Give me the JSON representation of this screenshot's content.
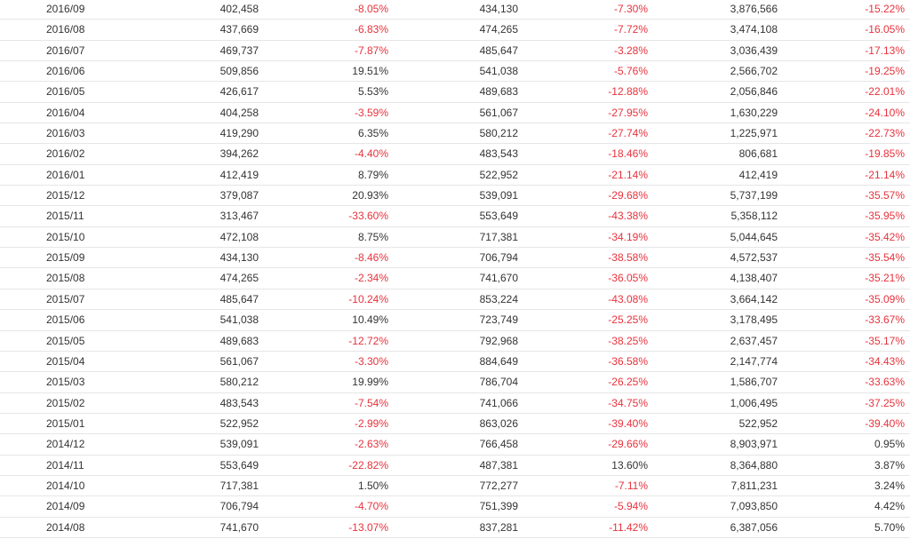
{
  "table": {
    "rows": [
      [
        "2016/09",
        "402,458",
        "-8.05%",
        "434,130",
        "-7.30%",
        "3,876,566",
        "-15.22%"
      ],
      [
        "2016/08",
        "437,669",
        "-6.83%",
        "474,265",
        "-7.72%",
        "3,474,108",
        "-16.05%"
      ],
      [
        "2016/07",
        "469,737",
        "-7.87%",
        "485,647",
        "-3.28%",
        "3,036,439",
        "-17.13%"
      ],
      [
        "2016/06",
        "509,856",
        "19.51%",
        "541,038",
        "-5.76%",
        "2,566,702",
        "-19.25%"
      ],
      [
        "2016/05",
        "426,617",
        "5.53%",
        "489,683",
        "-12.88%",
        "2,056,846",
        "-22.01%"
      ],
      [
        "2016/04",
        "404,258",
        "-3.59%",
        "561,067",
        "-27.95%",
        "1,630,229",
        "-24.10%"
      ],
      [
        "2016/03",
        "419,290",
        "6.35%",
        "580,212",
        "-27.74%",
        "1,225,971",
        "-22.73%"
      ],
      [
        "2016/02",
        "394,262",
        "-4.40%",
        "483,543",
        "-18.46%",
        "806,681",
        "-19.85%"
      ],
      [
        "2016/01",
        "412,419",
        "8.79%",
        "522,952",
        "-21.14%",
        "412,419",
        "-21.14%"
      ],
      [
        "2015/12",
        "379,087",
        "20.93%",
        "539,091",
        "-29.68%",
        "5,737,199",
        "-35.57%"
      ],
      [
        "2015/11",
        "313,467",
        "-33.60%",
        "553,649",
        "-43.38%",
        "5,358,112",
        "-35.95%"
      ],
      [
        "2015/10",
        "472,108",
        "8.75%",
        "717,381",
        "-34.19%",
        "5,044,645",
        "-35.42%"
      ],
      [
        "2015/09",
        "434,130",
        "-8.46%",
        "706,794",
        "-38.58%",
        "4,572,537",
        "-35.54%"
      ],
      [
        "2015/08",
        "474,265",
        "-2.34%",
        "741,670",
        "-36.05%",
        "4,138,407",
        "-35.21%"
      ],
      [
        "2015/07",
        "485,647",
        "-10.24%",
        "853,224",
        "-43.08%",
        "3,664,142",
        "-35.09%"
      ],
      [
        "2015/06",
        "541,038",
        "10.49%",
        "723,749",
        "-25.25%",
        "3,178,495",
        "-33.67%"
      ],
      [
        "2015/05",
        "489,683",
        "-12.72%",
        "792,968",
        "-38.25%",
        "2,637,457",
        "-35.17%"
      ],
      [
        "2015/04",
        "561,067",
        "-3.30%",
        "884,649",
        "-36.58%",
        "2,147,774",
        "-34.43%"
      ],
      [
        "2015/03",
        "580,212",
        "19.99%",
        "786,704",
        "-26.25%",
        "1,586,707",
        "-33.63%"
      ],
      [
        "2015/02",
        "483,543",
        "-7.54%",
        "741,066",
        "-34.75%",
        "1,006,495",
        "-37.25%"
      ],
      [
        "2015/01",
        "522,952",
        "-2.99%",
        "863,026",
        "-39.40%",
        "522,952",
        "-39.40%"
      ],
      [
        "2014/12",
        "539,091",
        "-2.63%",
        "766,458",
        "-29.66%",
        "8,903,971",
        "0.95%"
      ],
      [
        "2014/11",
        "553,649",
        "-22.82%",
        "487,381",
        "13.60%",
        "8,364,880",
        "3.87%"
      ],
      [
        "2014/10",
        "717,381",
        "1.50%",
        "772,277",
        "-7.11%",
        "7,811,231",
        "3.24%"
      ],
      [
        "2014/09",
        "706,794",
        "-4.70%",
        "751,399",
        "-5.94%",
        "7,093,850",
        "4.42%"
      ],
      [
        "2014/08",
        "741,670",
        "-13.07%",
        "837,281",
        "-11.42%",
        "6,387,056",
        "5.70%"
      ]
    ],
    "colors": {
      "negative": "#e8323c",
      "text": "#333333",
      "row_border": "#e6e6e6"
    }
  }
}
